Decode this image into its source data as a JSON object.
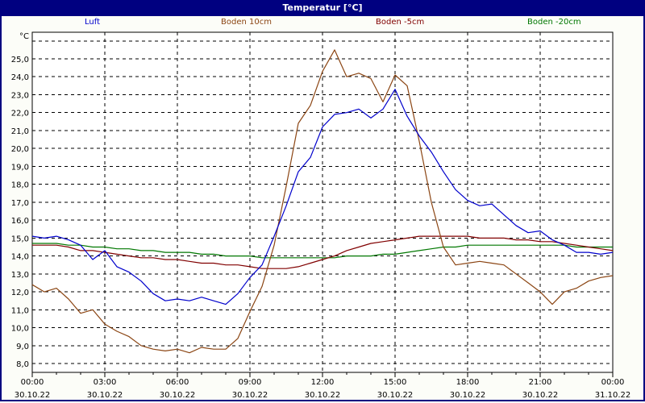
{
  "window": {
    "title": "Temperatur [°C]"
  },
  "legend": [
    {
      "label": "Luft",
      "color": "#0000cc"
    },
    {
      "label": "Boden 10cm",
      "color": "#8b4513"
    },
    {
      "label": "Boden -5cm",
      "color": "#800000"
    },
    {
      "label": "Boden -20cm",
      "color": "#007700"
    }
  ],
  "chart_data": {
    "type": "line",
    "title": "Temperatur [°C]",
    "xlabel": "",
    "ylabel": "°C",
    "ylim": [
      7.5,
      26.5
    ],
    "yticks": [
      "8,0",
      "9,0",
      "10,0",
      "11,0",
      "12,0",
      "13,0",
      "14,0",
      "15,0",
      "16,0",
      "17,0",
      "18,0",
      "19,0",
      "20,0",
      "21,0",
      "22,0",
      "23,0",
      "24,0",
      "25,0"
    ],
    "xticks": [
      {
        "time": "00:00",
        "date": "30.10.22"
      },
      {
        "time": "03:00",
        "date": "30.10.22"
      },
      {
        "time": "06:00",
        "date": "30.10.22"
      },
      {
        "time": "09:00",
        "date": "30.10.22"
      },
      {
        "time": "12:00",
        "date": "30.10.22"
      },
      {
        "time": "15:00",
        "date": "30.10.22"
      },
      {
        "time": "18:00",
        "date": "30.10.22"
      },
      {
        "time": "21:00",
        "date": "30.10.22"
      },
      {
        "time": "00:00",
        "date": "31.10.22"
      }
    ],
    "grid": true,
    "legend_position": "top",
    "x_hours": [
      0,
      0.5,
      1,
      1.5,
      2,
      2.5,
      3,
      3.5,
      4,
      4.5,
      5,
      5.5,
      6,
      6.5,
      7,
      7.5,
      8,
      8.5,
      9,
      9.5,
      10,
      10.5,
      11,
      11.5,
      12,
      12.5,
      13,
      13.5,
      14,
      14.5,
      15,
      15.5,
      16,
      16.5,
      17,
      17.5,
      18,
      18.5,
      19,
      19.5,
      20,
      20.5,
      21,
      21.5,
      22,
      22.5,
      23,
      23.5,
      24
    ],
    "series": [
      {
        "name": "Luft",
        "color": "#0000cc",
        "values": [
          15.1,
          15.0,
          15.1,
          14.9,
          14.6,
          13.8,
          14.3,
          13.4,
          13.1,
          12.6,
          11.9,
          11.5,
          11.6,
          11.5,
          11.7,
          11.5,
          11.3,
          11.9,
          12.8,
          13.5,
          15.1,
          16.8,
          18.7,
          19.5,
          21.2,
          21.9,
          22.0,
          22.2,
          21.7,
          22.2,
          23.3,
          21.8,
          20.7,
          19.8,
          18.7,
          17.7,
          17.1,
          16.8,
          16.9,
          16.3,
          15.7,
          15.3,
          15.4,
          14.9,
          14.6,
          14.2,
          14.2,
          14.1,
          14.2
        ]
      },
      {
        "name": "Boden 10cm",
        "color": "#8b4513",
        "values": [
          12.4,
          12.0,
          12.2,
          11.6,
          10.8,
          11.0,
          10.2,
          9.8,
          9.5,
          9.0,
          8.8,
          8.7,
          8.8,
          8.6,
          8.9,
          8.8,
          8.8,
          9.4,
          10.9,
          12.3,
          14.6,
          17.9,
          21.4,
          22.4,
          24.3,
          25.5,
          24.0,
          24.2,
          23.9,
          22.6,
          24.1,
          23.5,
          20.4,
          17.0,
          14.5,
          13.5,
          13.6,
          13.7,
          13.6,
          13.5,
          13.0,
          12.5,
          12.0,
          11.3,
          12.0,
          12.2,
          12.6,
          12.8,
          12.9
        ]
      },
      {
        "name": "Boden -5cm",
        "color": "#800000",
        "values": [
          14.6,
          14.6,
          14.6,
          14.5,
          14.3,
          14.3,
          14.2,
          14.1,
          14.0,
          13.9,
          13.9,
          13.8,
          13.8,
          13.7,
          13.6,
          13.6,
          13.5,
          13.5,
          13.4,
          13.3,
          13.3,
          13.3,
          13.4,
          13.6,
          13.8,
          14.0,
          14.3,
          14.5,
          14.7,
          14.8,
          14.9,
          15.0,
          15.1,
          15.1,
          15.1,
          15.1,
          15.1,
          15.0,
          15.0,
          15.0,
          14.9,
          14.9,
          14.8,
          14.8,
          14.7,
          14.6,
          14.5,
          14.4,
          14.3
        ]
      },
      {
        "name": "Boden -20cm",
        "color": "#007700",
        "values": [
          14.7,
          14.7,
          14.7,
          14.6,
          14.6,
          14.5,
          14.5,
          14.4,
          14.4,
          14.3,
          14.3,
          14.2,
          14.2,
          14.2,
          14.1,
          14.1,
          14.0,
          14.0,
          14.0,
          13.9,
          13.9,
          13.9,
          13.9,
          13.9,
          13.9,
          13.9,
          14.0,
          14.0,
          14.0,
          14.1,
          14.1,
          14.2,
          14.3,
          14.4,
          14.5,
          14.5,
          14.6,
          14.6,
          14.6,
          14.6,
          14.6,
          14.6,
          14.6,
          14.6,
          14.6,
          14.5,
          14.5,
          14.5,
          14.5
        ]
      }
    ]
  }
}
